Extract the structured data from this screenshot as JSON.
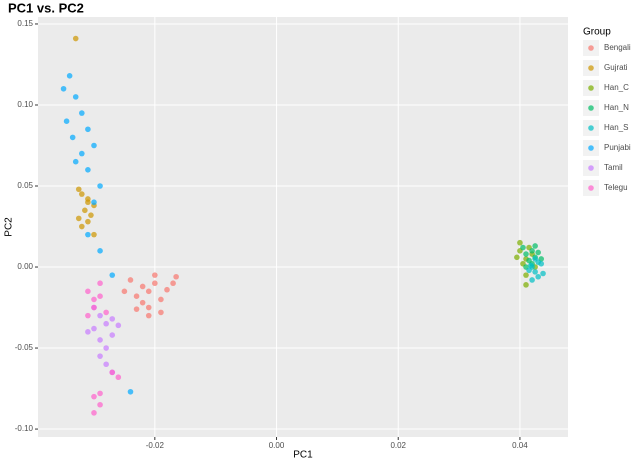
{
  "chart_data": {
    "type": "scatter",
    "title": "PC1 vs. PC2",
    "x_label": "PC1",
    "y_label": "PC2",
    "legend_title": "Group",
    "legend_position": "right",
    "grid": true,
    "xlim": [
      -0.0392,
      0.0479
    ],
    "ylim": [
      -0.1049,
      0.1543
    ],
    "xticks": [
      -0.02,
      {
        "value": 0,
        "label": "0.00"
      },
      0.02,
      0.04
    ],
    "yticks": [
      {
        "value": -0.1,
        "label": "-0.10"
      },
      -0.05,
      {
        "value": 0,
        "label": "0.00"
      },
      0.05,
      {
        "value": 0.1,
        "label": "0.10"
      },
      0.15
    ],
    "series": [
      {
        "name": "Bengali",
        "color": "#F8766D",
        "x": [
          -0.022,
          -0.021,
          -0.02,
          -0.023,
          -0.019,
          -0.024,
          -0.021,
          -0.018,
          -0.022,
          -0.02,
          -0.025,
          -0.017,
          -0.021,
          -0.023,
          -0.019,
          -0.0165
        ],
        "y": [
          -0.012,
          -0.015,
          -0.01,
          -0.018,
          -0.02,
          -0.008,
          -0.025,
          -0.014,
          -0.022,
          -0.005,
          -0.015,
          -0.01,
          -0.03,
          -0.026,
          -0.028,
          -0.006
        ]
      },
      {
        "name": "Gujrati",
        "color": "#CD9600",
        "x": [
          -0.033,
          -0.032,
          -0.031,
          -0.0315,
          -0.0325,
          -0.031,
          -0.03,
          -0.032,
          -0.0305,
          -0.031,
          -0.0325,
          -0.03
        ],
        "y": [
          0.141,
          0.045,
          0.04,
          0.035,
          0.03,
          0.042,
          0.038,
          0.025,
          0.032,
          0.028,
          0.048,
          0.02
        ]
      },
      {
        "name": "Han_C",
        "color": "#7CAE00",
        "x": [
          0.04,
          0.041,
          0.0415,
          0.0405,
          0.042,
          0.0395,
          0.041,
          0.0425,
          0.04,
          0.041
        ],
        "y": [
          0.01,
          0.005,
          0.012,
          0.002,
          0.008,
          0.006,
          -0.005,
          0.0,
          0.015,
          -0.011
        ]
      },
      {
        "name": "Han_N",
        "color": "#00BE67",
        "x": [
          0.041,
          0.042,
          0.0415,
          0.0425,
          0.043,
          0.0405,
          0.042,
          0.0435,
          0.041,
          0.0425
        ],
        "y": [
          0.008,
          0.01,
          0.004,
          0.006,
          0.009,
          0.012,
          0.002,
          0.005,
          0.0,
          0.013
        ]
      },
      {
        "name": "Han_S",
        "color": "#00BFC4",
        "x": [
          0.042,
          0.0425,
          0.043,
          0.0415,
          0.0435,
          0.042,
          0.043,
          0.0425,
          0.0438,
          0.0418
        ],
        "y": [
          0.0,
          -0.003,
          -0.006,
          -0.002,
          0.002,
          -0.008,
          0.003,
          0.005,
          -0.004,
          0.001
        ]
      },
      {
        "name": "Punjabi",
        "color": "#00A9FF",
        "x": [
          -0.034,
          -0.035,
          -0.033,
          -0.0345,
          -0.032,
          -0.0335,
          -0.031,
          -0.032,
          -0.03,
          -0.031,
          -0.033,
          -0.029,
          -0.03,
          -0.031,
          -0.029,
          -0.027,
          -0.024
        ],
        "y": [
          0.118,
          0.11,
          0.105,
          0.09,
          0.095,
          0.08,
          0.085,
          0.07,
          0.075,
          0.06,
          0.065,
          0.05,
          0.04,
          0.02,
          0.01,
          -0.005,
          -0.077
        ]
      },
      {
        "name": "Tamil",
        "color": "#C77CFF",
        "x": [
          -0.03,
          -0.029,
          -0.028,
          -0.031,
          -0.027,
          -0.029,
          -0.028,
          -0.03,
          -0.027,
          -0.026,
          -0.029,
          -0.028,
          -0.027
        ],
        "y": [
          -0.025,
          -0.03,
          -0.035,
          -0.04,
          -0.032,
          -0.045,
          -0.05,
          -0.038,
          -0.042,
          -0.036,
          -0.055,
          -0.06,
          -0.065
        ]
      },
      {
        "name": "Telegu",
        "color": "#FF61CC",
        "x": [
          -0.031,
          -0.03,
          -0.029,
          -0.03,
          -0.031,
          -0.029,
          -0.028,
          -0.03,
          -0.029,
          -0.03,
          -0.029,
          -0.027,
          -0.026
        ],
        "y": [
          -0.015,
          -0.02,
          -0.018,
          -0.025,
          -0.03,
          -0.01,
          -0.028,
          -0.08,
          -0.085,
          -0.09,
          -0.078,
          -0.065,
          -0.068
        ]
      }
    ]
  }
}
